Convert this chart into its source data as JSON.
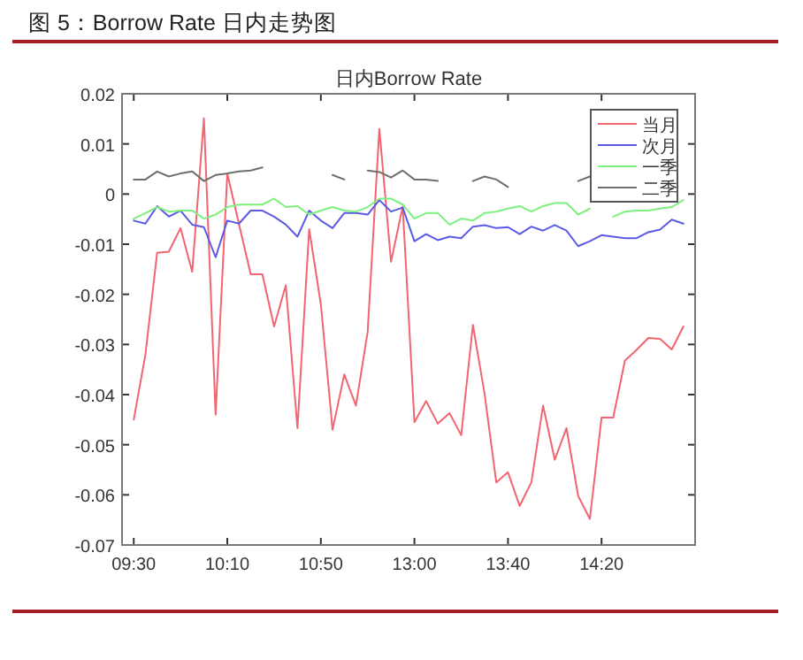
{
  "chart_data": {
    "type": "line",
    "title": "图 5：Borrow Rate 日内走势图",
    "subtitle": "日内Borrow Rate",
    "categories": [
      "09:30",
      null,
      null,
      null,
      null,
      null,
      null,
      null,
      "10:10",
      null,
      null,
      null,
      null,
      null,
      null,
      null,
      "10:50",
      null,
      null,
      null,
      null,
      null,
      null,
      null,
      "13:00",
      null,
      null,
      null,
      null,
      null,
      null,
      null,
      "13:40",
      null,
      null,
      null,
      null,
      null,
      null,
      null,
      "14:20",
      null,
      null,
      null,
      null,
      null,
      null,
      null
    ],
    "ylim": [
      -0.07,
      0.02
    ],
    "yticks": [
      -0.07,
      -0.06,
      -0.05,
      -0.04,
      -0.03,
      -0.02,
      -0.01,
      0,
      0.01,
      0.02
    ],
    "grid": false,
    "legend": "top right",
    "marker": "none",
    "line_style": "solid",
    "series": [
      {
        "name": "当月",
        "color": "#f26470",
        "values": [
          -0.045,
          -0.032,
          -0.0117,
          -0.0115,
          -0.0068,
          -0.0155,
          0.0151,
          -0.044,
          0.0041,
          -0.006,
          -0.016,
          -0.016,
          -0.0264,
          -0.0182,
          -0.0467,
          -0.007,
          -0.022,
          -0.047,
          -0.036,
          -0.0422,
          -0.0275,
          0.013,
          -0.0135,
          -0.0025,
          -0.0455,
          -0.0413,
          -0.0458,
          -0.0437,
          -0.0481,
          -0.0261,
          -0.0399,
          -0.0575,
          -0.0555,
          -0.0622,
          -0.0575,
          -0.0422,
          -0.053,
          -0.0467,
          -0.0602,
          -0.0648,
          -0.0446,
          -0.0446,
          -0.0332,
          -0.0311,
          -0.0287,
          -0.0289,
          -0.031,
          -0.0264
        ]
      },
      {
        "name": "次月",
        "color": "#5a5ae6",
        "values": [
          -0.0053,
          -0.0059,
          -0.0024,
          -0.0045,
          -0.0033,
          -0.0061,
          -0.0066,
          -0.0126,
          -0.0053,
          -0.0059,
          -0.0033,
          -0.0033,
          -0.0045,
          -0.0061,
          -0.0085,
          -0.0033,
          -0.0053,
          -0.0068,
          -0.0038,
          -0.0038,
          -0.0041,
          -0.0012,
          -0.0035,
          -0.0027,
          -0.0094,
          -0.008,
          -0.0092,
          -0.0085,
          -0.0088,
          -0.0065,
          -0.0062,
          -0.0068,
          -0.0066,
          -0.008,
          -0.0065,
          -0.0073,
          -0.0062,
          -0.0073,
          -0.0104,
          -0.0094,
          -0.0082,
          -0.0085,
          -0.0088,
          -0.0088,
          -0.0076,
          -0.0071,
          -0.0051,
          -0.0059
        ]
      },
      {
        "name": "一季",
        "color": "#7ef07e",
        "values": [
          -0.0049,
          -0.0038,
          -0.0026,
          -0.0035,
          -0.0033,
          -0.0033,
          -0.0049,
          -0.0041,
          -0.0026,
          -0.0021,
          -0.0021,
          -0.0021,
          -0.0009,
          -0.0026,
          -0.0024,
          -0.0041,
          -0.0033,
          -0.0026,
          -0.0033,
          -0.0035,
          -0.0026,
          -0.0009,
          -0.0009,
          -0.0021,
          -0.0049,
          -0.0038,
          -0.0038,
          -0.0061,
          -0.0049,
          -0.0053,
          -0.0038,
          -0.0035,
          -0.0029,
          -0.0024,
          -0.0035,
          -0.0024,
          -0.0018,
          -0.0018,
          -0.0041,
          -0.0029,
          null,
          -0.0045,
          -0.0035,
          -0.0033,
          -0.0033,
          -0.0029,
          -0.0026,
          -0.0012
        ]
      },
      {
        "name": "二季",
        "color": "#6e6e6e",
        "values": [
          0.0029,
          0.0029,
          0.0045,
          0.0035,
          0.0041,
          0.0045,
          0.0026,
          0.0038,
          0.0041,
          0.0045,
          0.0047,
          0.0053,
          null,
          null,
          null,
          null,
          null,
          0.0038,
          0.0029,
          null,
          0.0047,
          0.0044,
          0.0033,
          0.0047,
          0.0029,
          0.0029,
          0.0026,
          null,
          null,
          0.0026,
          0.0035,
          0.0029,
          0.0014,
          null,
          null,
          null,
          null,
          null,
          0.0026,
          0.0035,
          null,
          null,
          null,
          null,
          null,
          null,
          null,
          null
        ]
      }
    ]
  }
}
